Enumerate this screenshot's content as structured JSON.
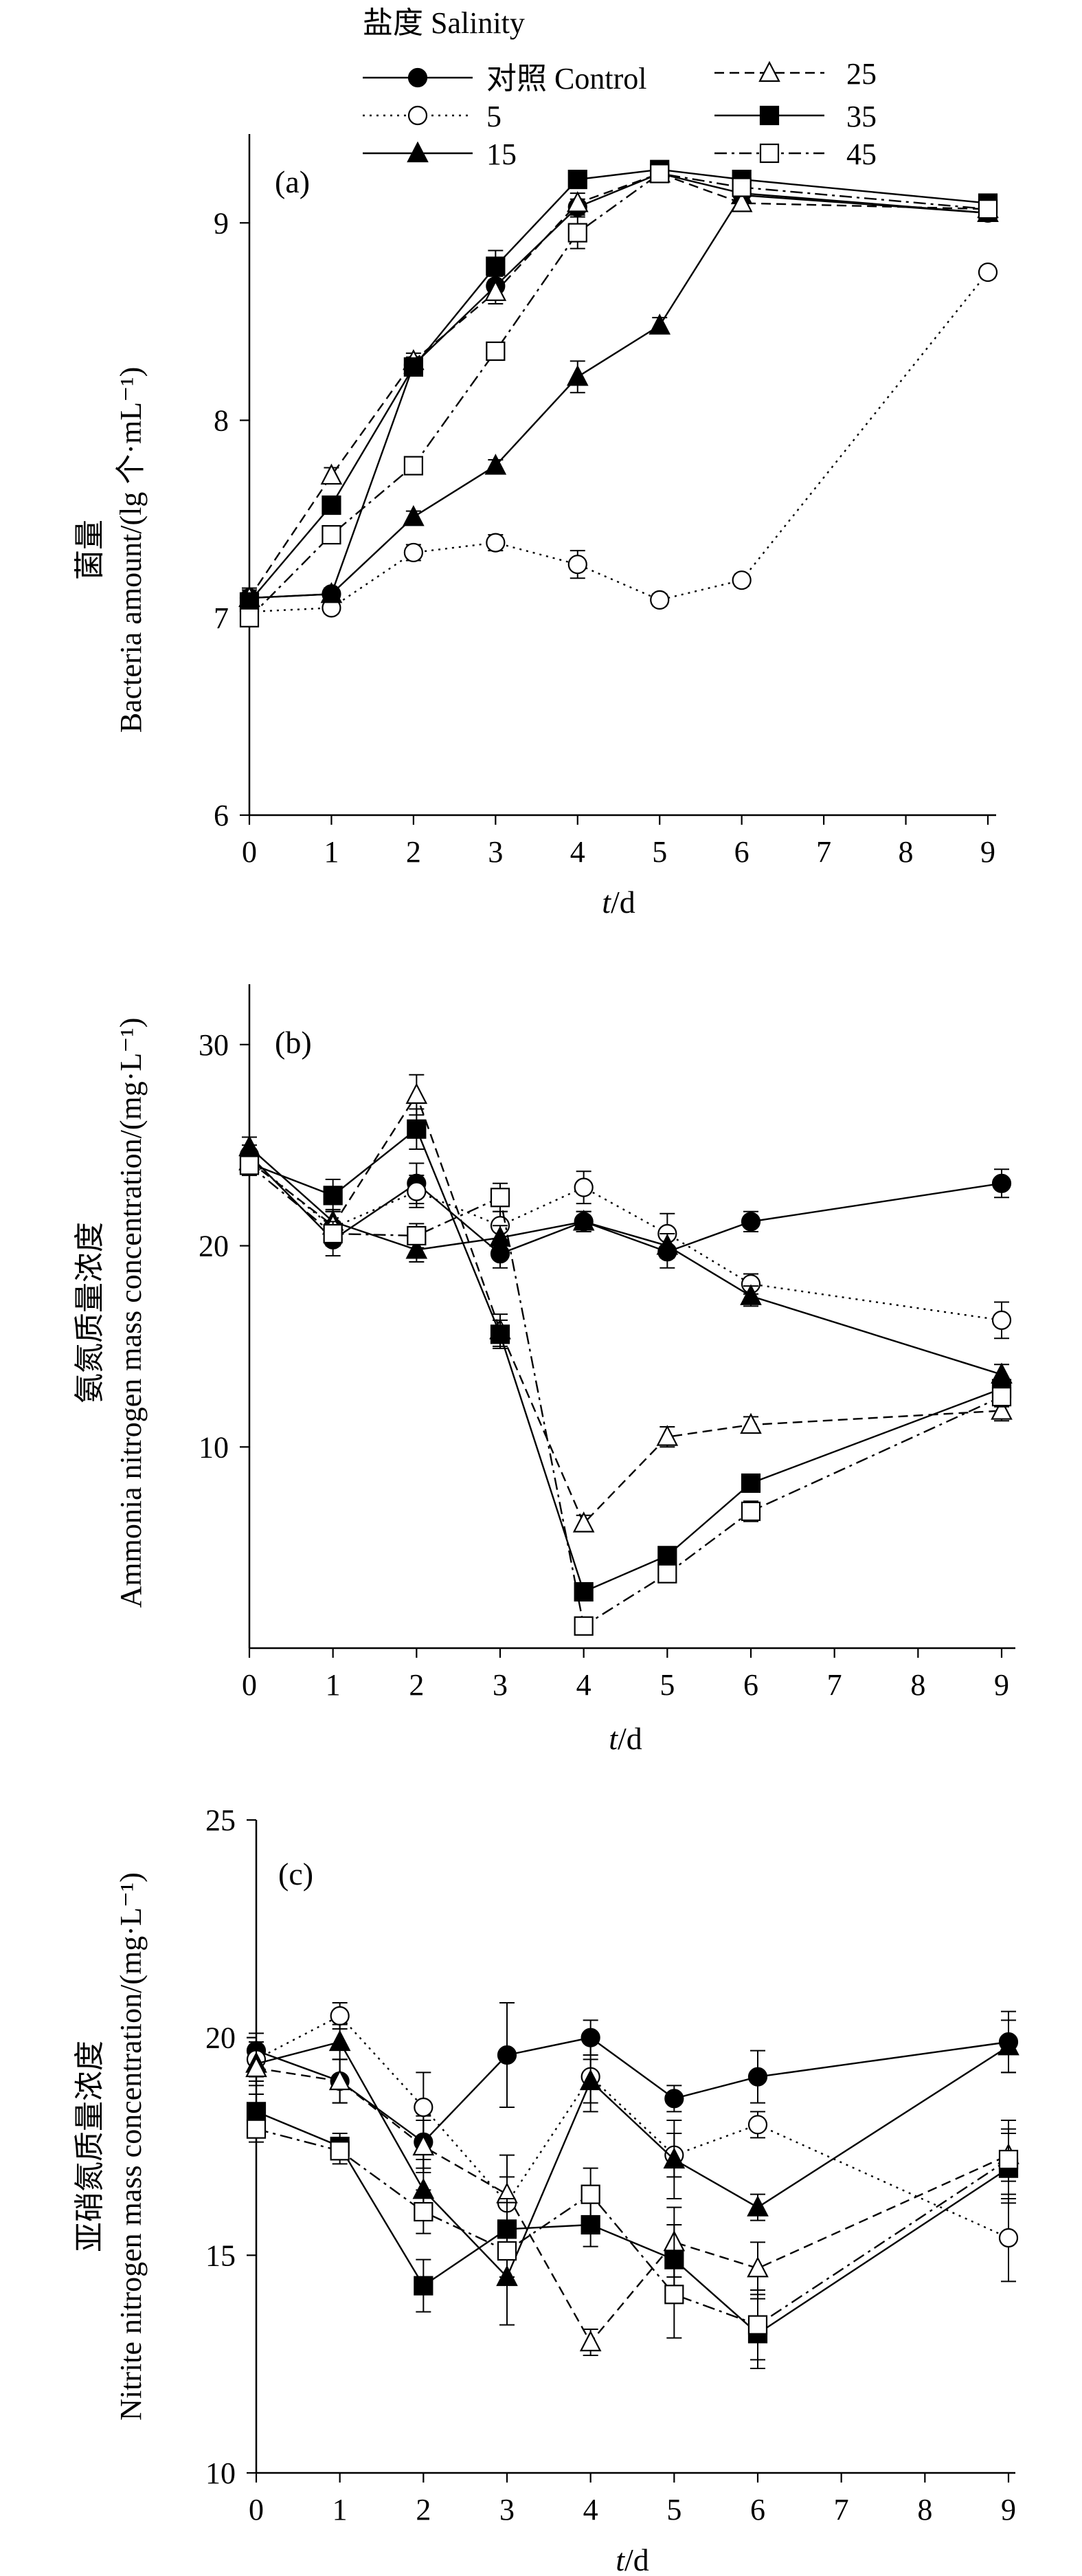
{
  "legend": {
    "title": "盐度 Salinity",
    "entries": [
      {
        "id": "control",
        "label": "对照  Control",
        "marker": "filled-circle",
        "dash": "solid"
      },
      {
        "id": "s5",
        "label": "5",
        "marker": "open-circle",
        "dash": "dotted"
      },
      {
        "id": "s15",
        "label": "15",
        "marker": "filled-triangle",
        "dash": "solid"
      },
      {
        "id": "s25",
        "label": "25",
        "marker": "open-triangle",
        "dash": "dashed"
      },
      {
        "id": "s35",
        "label": "35",
        "marker": "filled-square",
        "dash": "solid"
      },
      {
        "id": "s45",
        "label": "45",
        "marker": "open-square",
        "dash": "dashdot"
      }
    ]
  },
  "chart_data": [
    {
      "type": "line",
      "panel": "(a)",
      "ylabel_cn": "菌量",
      "ylabel_en": "Bacteria amount/(lg 个·mL⁻¹)",
      "xlabel": "t/d",
      "xlabel_italic": "t",
      "xlabel_rest": "/d",
      "x_ticks": [
        0,
        1,
        2,
        3,
        4,
        5,
        6,
        7,
        8,
        9
      ],
      "y_ticks": [
        6,
        7,
        8,
        9
      ],
      "ylim": [
        6,
        9.45
      ],
      "xlim": [
        0,
        9
      ],
      "series": [
        {
          "id": "control",
          "x": [
            0,
            1,
            2,
            3,
            4,
            5,
            6,
            9
          ],
          "values": [
            7.1,
            7.12,
            8.28,
            8.68,
            9.08,
            9.25,
            9.15,
            9.05
          ],
          "err": [
            0.05,
            0.03,
            0.04,
            0.05,
            0.04,
            0.03,
            0.03,
            0.03
          ]
        },
        {
          "id": "s5",
          "x": [
            0,
            1,
            2,
            3,
            4,
            5,
            6,
            9
          ],
          "values": [
            7.03,
            7.05,
            7.33,
            7.38,
            7.27,
            7.09,
            7.19,
            8.75
          ],
          "err": [
            0.05,
            0.03,
            0.04,
            0.04,
            0.07,
            0.03,
            0.03,
            0.03
          ]
        },
        {
          "id": "s15",
          "x": [
            0,
            1,
            2,
            3,
            4,
            5,
            6,
            9
          ],
          "values": [
            7.1,
            7.12,
            7.51,
            7.77,
            8.22,
            8.48,
            9.14,
            9.05
          ],
          "err": [
            0.04,
            0.03,
            0.03,
            0.03,
            0.08,
            0.04,
            0.03,
            0.03
          ]
        },
        {
          "id": "s25",
          "x": [
            0,
            1,
            2,
            3,
            4,
            5,
            6,
            9
          ],
          "values": [
            7.1,
            7.72,
            8.3,
            8.65,
            9.1,
            9.25,
            9.1,
            9.07
          ],
          "err": [
            0.04,
            0.04,
            0.04,
            0.06,
            0.05,
            0.03,
            0.03,
            0.03
          ]
        },
        {
          "id": "s35",
          "x": [
            0,
            1,
            2,
            3,
            4,
            5,
            6,
            9
          ],
          "values": [
            7.08,
            7.57,
            8.27,
            8.78,
            9.22,
            9.27,
            9.22,
            9.1
          ],
          "err": [
            0.04,
            0.04,
            0.04,
            0.08,
            0.04,
            0.03,
            0.03,
            0.04
          ]
        },
        {
          "id": "s45",
          "x": [
            0,
            1,
            2,
            3,
            4,
            5,
            6,
            9
          ],
          "values": [
            7.0,
            7.42,
            7.77,
            8.35,
            8.95,
            9.25,
            9.18,
            9.07
          ],
          "err": [
            0.04,
            0.04,
            0.04,
            0.04,
            0.08,
            0.03,
            0.03,
            0.03
          ]
        }
      ]
    },
    {
      "type": "line",
      "panel": "(b)",
      "ylabel_cn": "氨氮质量浓度",
      "ylabel_en": "Ammonia nitrogen mass concentration/(mg·L⁻¹)",
      "xlabel": "t/d",
      "xlabel_italic": "t",
      "xlabel_rest": "/d",
      "x_ticks": [
        0,
        1,
        2,
        3,
        4,
        5,
        6,
        7,
        8,
        9
      ],
      "y_ticks": [
        10,
        20,
        30
      ],
      "ylim": [
        0,
        33
      ],
      "xlim": [
        0,
        9
      ],
      "series": [
        {
          "id": "control",
          "x": [
            0,
            1,
            2,
            3,
            4,
            5,
            6,
            9
          ],
          "values": [
            24.5,
            20.3,
            23.1,
            19.6,
            21.2,
            19.7,
            21.2,
            23.1
          ],
          "err": [
            0.5,
            0.8,
            1.0,
            0.7,
            0.5,
            0.8,
            0.5,
            0.7
          ]
        },
        {
          "id": "s5",
          "x": [
            0,
            1,
            2,
            3,
            4,
            5,
            6,
            9
          ],
          "values": [
            24.3,
            20.9,
            22.7,
            21.0,
            22.9,
            20.6,
            18.1,
            16.3
          ],
          "err": [
            0.5,
            0.8,
            0.8,
            0.7,
            0.8,
            1.0,
            0.5,
            0.9
          ]
        },
        {
          "id": "s15",
          "x": [
            0,
            1,
            2,
            3,
            4,
            5,
            6,
            9
          ],
          "values": [
            24.9,
            21.2,
            19.8,
            20.4,
            21.2,
            20.0,
            17.5,
            13.6
          ],
          "err": [
            0.5,
            0.6,
            0.6,
            0.6,
            0.5,
            0.6,
            0.5,
            0.5
          ]
        },
        {
          "id": "s25",
          "x": [
            0,
            1,
            2,
            3,
            4,
            5,
            6,
            9
          ],
          "values": [
            24.2,
            21.0,
            27.5,
            15.8,
            6.2,
            10.5,
            11.1,
            11.8
          ],
          "err": [
            0.5,
            0.7,
            1.0,
            0.8,
            0.4,
            0.5,
            0.4,
            0.5
          ]
        },
        {
          "id": "s35",
          "x": [
            0,
            1,
            2,
            3,
            4,
            5,
            6,
            9
          ],
          "values": [
            24.1,
            22.5,
            25.8,
            15.6,
            2.8,
            4.6,
            8.2,
            12.9
          ],
          "err": [
            0.5,
            0.8,
            1.0,
            0.7,
            0.3,
            0.4,
            0.4,
            0.5
          ]
        },
        {
          "id": "s45",
          "x": [
            0,
            1,
            2,
            3,
            4,
            5,
            6,
            9
          ],
          "values": [
            24.0,
            20.6,
            20.5,
            22.4,
            1.1,
            3.7,
            6.8,
            12.5
          ],
          "err": [
            0.5,
            0.6,
            0.6,
            0.7,
            0.3,
            0.3,
            0.5,
            0.5
          ]
        }
      ]
    },
    {
      "type": "line",
      "panel": "(c)",
      "ylabel_cn": "亚硝氮质量浓度",
      "ylabel_en": "Nitrite nitrogen mass concentration/(mg·L⁻¹)",
      "xlabel": "t/d",
      "xlabel_italic": "t",
      "xlabel_rest": "/d",
      "x_ticks": [
        0,
        1,
        2,
        3,
        4,
        5,
        6,
        7,
        8,
        9
      ],
      "y_ticks": [
        10,
        15,
        20,
        25
      ],
      "ylim": [
        10,
        25
      ],
      "xlim": [
        0,
        9
      ],
      "series": [
        {
          "id": "control",
          "x": [
            0,
            1,
            2,
            3,
            4,
            5,
            6,
            9
          ],
          "values": [
            19.7,
            19.0,
            17.6,
            19.6,
            20.0,
            18.6,
            19.1,
            19.9
          ],
          "err": [
            0.4,
            0.5,
            0.6,
            1.2,
            0.4,
            0.3,
            0.6,
            0.7
          ]
        },
        {
          "id": "s5",
          "x": [
            0,
            1,
            2,
            3,
            4,
            5,
            6,
            9
          ],
          "values": [
            19.5,
            20.5,
            18.4,
            16.2,
            19.1,
            17.3,
            18.0,
            15.4
          ],
          "err": [
            0.4,
            0.3,
            0.8,
            0.6,
            0.8,
            0.5,
            0.3,
            1.0
          ]
        },
        {
          "id": "s15",
          "x": [
            0,
            1,
            2,
            3,
            4,
            5,
            6,
            9
          ],
          "values": [
            19.4,
            19.9,
            16.5,
            14.5,
            19.0,
            17.2,
            16.1,
            19.8
          ],
          "err": [
            0.4,
            0.4,
            0.7,
            1.1,
            0.5,
            0.9,
            0.3,
            0.6
          ]
        },
        {
          "id": "s25",
          "x": [
            0,
            1,
            2,
            3,
            4,
            5,
            6,
            9
          ],
          "values": [
            19.3,
            19.0,
            17.5,
            16.4,
            13.0,
            15.3,
            14.7,
            17.3
          ],
          "err": [
            0.4,
            0.5,
            0.6,
            0.9,
            0.3,
            0.8,
            0.6,
            0.6
          ]
        },
        {
          "id": "s35",
          "x": [
            0,
            1,
            2,
            3,
            4,
            5,
            6,
            9
          ],
          "values": [
            18.3,
            17.5,
            14.3,
            15.6,
            15.7,
            14.9,
            13.2,
            17.0
          ],
          "err": [
            0.4,
            0.3,
            0.6,
            0.7,
            0.5,
            0.8,
            0.8,
            0.8
          ]
        },
        {
          "id": "s45",
          "x": [
            0,
            1,
            2,
            3,
            4,
            5,
            6,
            9
          ],
          "values": [
            17.9,
            17.4,
            16.0,
            15.1,
            16.4,
            14.1,
            13.4,
            17.2
          ],
          "err": [
            0.3,
            0.3,
            0.5,
            0.6,
            0.6,
            1.0,
            0.8,
            0.9
          ]
        }
      ]
    }
  ]
}
